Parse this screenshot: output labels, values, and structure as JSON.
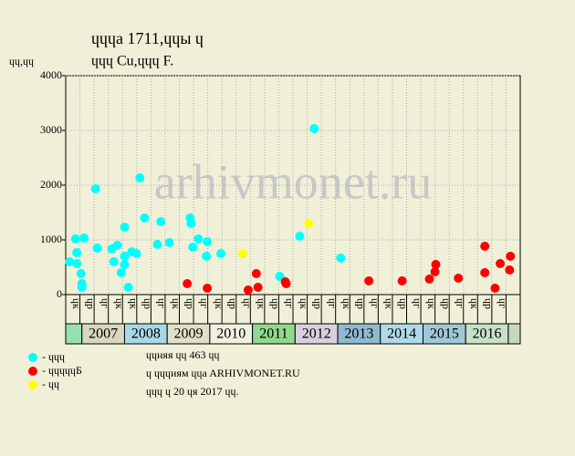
{
  "chart_data": {
    "type": "scatter",
    "title": "ɥɥɥa 1711,ɥɥы ɥ",
    "subtitle": "ɥɥɥ Cu,ɥɥɥ F.",
    "y_label": "ɥɥ,ɥɥ",
    "watermark": "arhivmonet.ru",
    "xlim": [
      2006.62,
      2017.28
    ],
    "ylim": [
      0,
      4000
    ],
    "yticks": [
      0,
      1000,
      2000,
      3000,
      4000
    ],
    "grid": true,
    "years": [
      "2007",
      "2008",
      "2009",
      "2010",
      "2011",
      "2012",
      "2013",
      "2014",
      "2015",
      "2016"
    ],
    "year_colors": [
      "#d8d8c0",
      "#a8d8e8",
      "#e0e0c8",
      "#f0f0e0",
      "#90d890",
      "#d8d0e0",
      "#90b8d0",
      "#b0d8e8",
      "#a0c8d8",
      "#c8e0c8"
    ],
    "slot_labels": [
      "ɥк",
      "ɥр",
      "ɥг",
      "ɥк",
      "ɥк",
      "ɥр",
      "ɥг",
      "ɥк",
      "ɥр",
      "ɥг",
      "ɥк",
      "ɥр",
      "ɥг",
      "ɥк",
      "ɥр",
      "ɥг",
      "ɥк",
      "ɥр",
      "ɥг",
      "ɥк",
      "ɥр",
      "ɥг",
      "ɥк",
      "ɥр",
      "ɥг",
      "ɥк",
      "ɥр",
      "ɥг",
      "ɥк",
      "ɥр",
      "ɥг"
    ],
    "series": [
      {
        "name": "- ɥɥɥ",
        "color": "#00ffff",
        "x": [
          2006.71,
          2006.85,
          2006.88,
          2006.88,
          2006.98,
          2007.0,
          2007.0,
          2007.05,
          2007.32,
          2007.36,
          2007.7,
          2007.75,
          2007.83,
          2007.92,
          2008.0,
          2008.0,
          2008.0,
          2008.09,
          2008.17,
          2008.28,
          2008.36,
          2008.47,
          2008.77,
          2008.85,
          2009.05,
          2009.54,
          2009.56,
          2009.6,
          2009.73,
          2009.92,
          2009.94,
          2010.26,
          2011.64,
          2012.11,
          2012.45,
          2013.07
        ],
        "values": [
          600,
          1017,
          767,
          567,
          383,
          200,
          133,
          1033,
          1933,
          850,
          833,
          600,
          900,
          400,
          1233,
          550,
          700,
          133,
          783,
          750,
          2133,
          1400,
          917,
          1333,
          950,
          1400,
          1300,
          867,
          1017,
          700,
          967,
          750,
          333,
          1067,
          3033,
          667
        ]
      },
      {
        "name": "- ɥɥɥɥɥБ",
        "color": "#ff0000",
        "x": [
          2009.47,
          2009.94,
          2010.9,
          2011.09,
          2011.13,
          2011.77,
          2011.79,
          2013.73,
          2014.51,
          2015.15,
          2015.28,
          2015.3,
          2015.83,
          2016.45,
          2016.45,
          2016.69,
          2016.81,
          2017.03,
          2017.05
        ],
        "values": [
          200,
          117,
          83,
          383,
          133,
          233,
          200,
          250,
          250,
          283,
          417,
          550,
          300,
          883,
          400,
          117,
          567,
          450,
          700
        ]
      },
      {
        "name": "- ɥɥ",
        "color": "#ffff00",
        "x": [
          2010.77,
          2012.32
        ],
        "values": [
          750,
          1300
        ]
      }
    ],
    "notes": [
      "ɥɥняя ɥɥ 463 ɥɥ",
      "ɥ ɥɥɥиям ɥɥa ARHIVMONET.RU",
      "ɥɥɥ ɥ 20 ɥя 2017 ɥɥ."
    ]
  }
}
